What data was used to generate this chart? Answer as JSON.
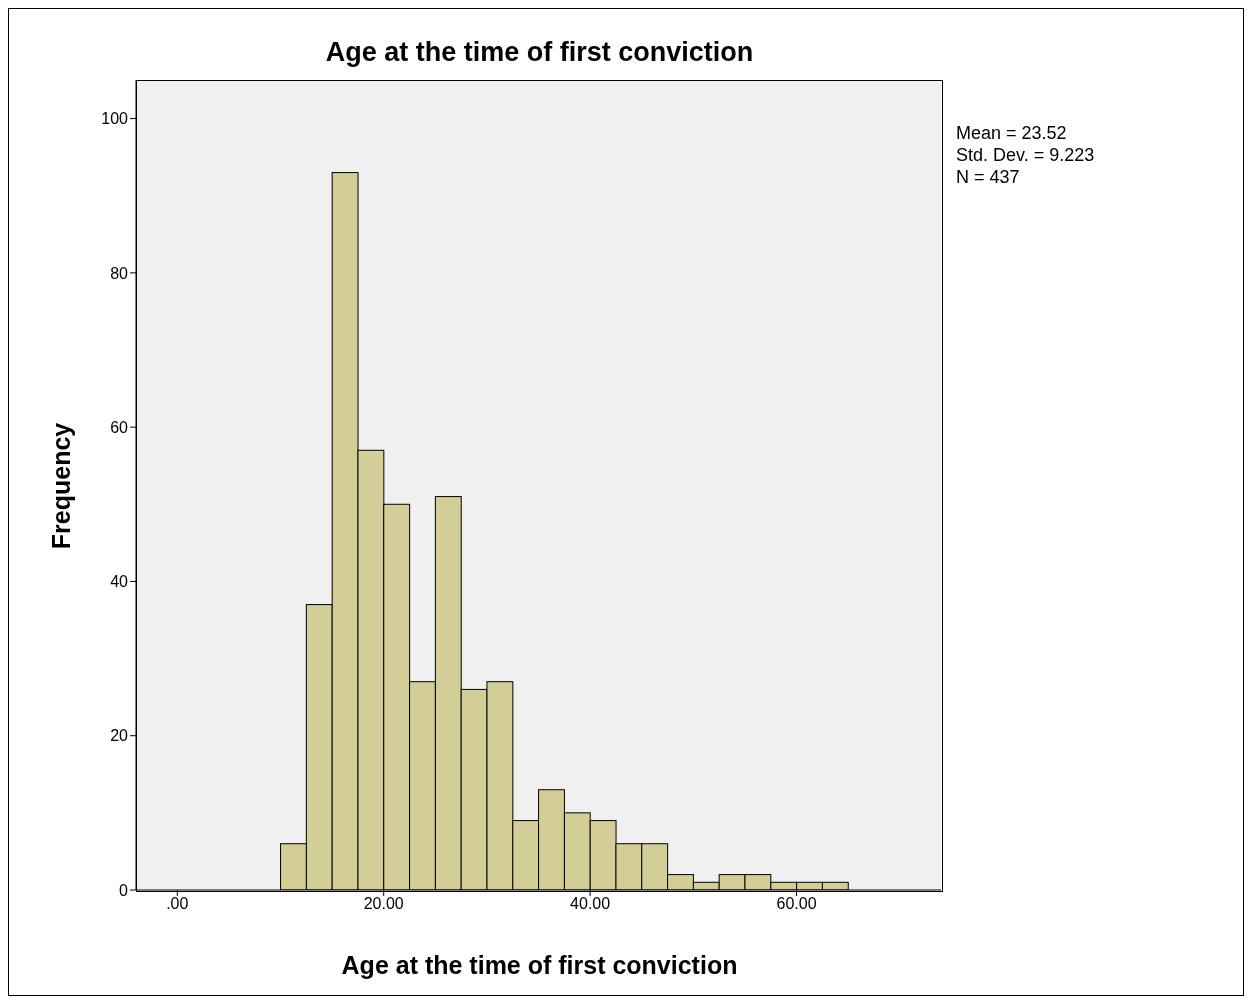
{
  "chart_data": {
    "type": "histogram",
    "title": "Age at the time of first conviction",
    "xlabel": "Age at the time of first conviction",
    "ylabel": "Frequency",
    "bins": [
      10,
      12.5,
      15,
      17.5,
      20,
      22.5,
      25,
      27.5,
      30,
      32.5,
      35,
      37.5,
      40,
      42.5,
      45,
      47.5,
      50,
      52.5,
      55,
      57.5,
      60,
      62.5,
      65
    ],
    "values": [
      6,
      37,
      93,
      57,
      50,
      27,
      51,
      26,
      27,
      9,
      13,
      10,
      9,
      6,
      6,
      2,
      1,
      2,
      2,
      1,
      1,
      1
    ],
    "color": "#d3ce97",
    "xlim": [
      -4,
      74
    ],
    "xticks": [
      {
        "value": 0,
        "label": ".00"
      },
      {
        "value": 20,
        "label": "20.00"
      },
      {
        "value": 40,
        "label": "40.00"
      },
      {
        "value": 60,
        "label": "60.00"
      }
    ],
    "ylim": [
      0,
      105
    ],
    "yticks": [
      0,
      20,
      40,
      60,
      80,
      100
    ],
    "grid": false,
    "annotations": [
      "Mean = 23.52",
      "Std. Dev. = 9.223",
      "N = 437"
    ]
  }
}
